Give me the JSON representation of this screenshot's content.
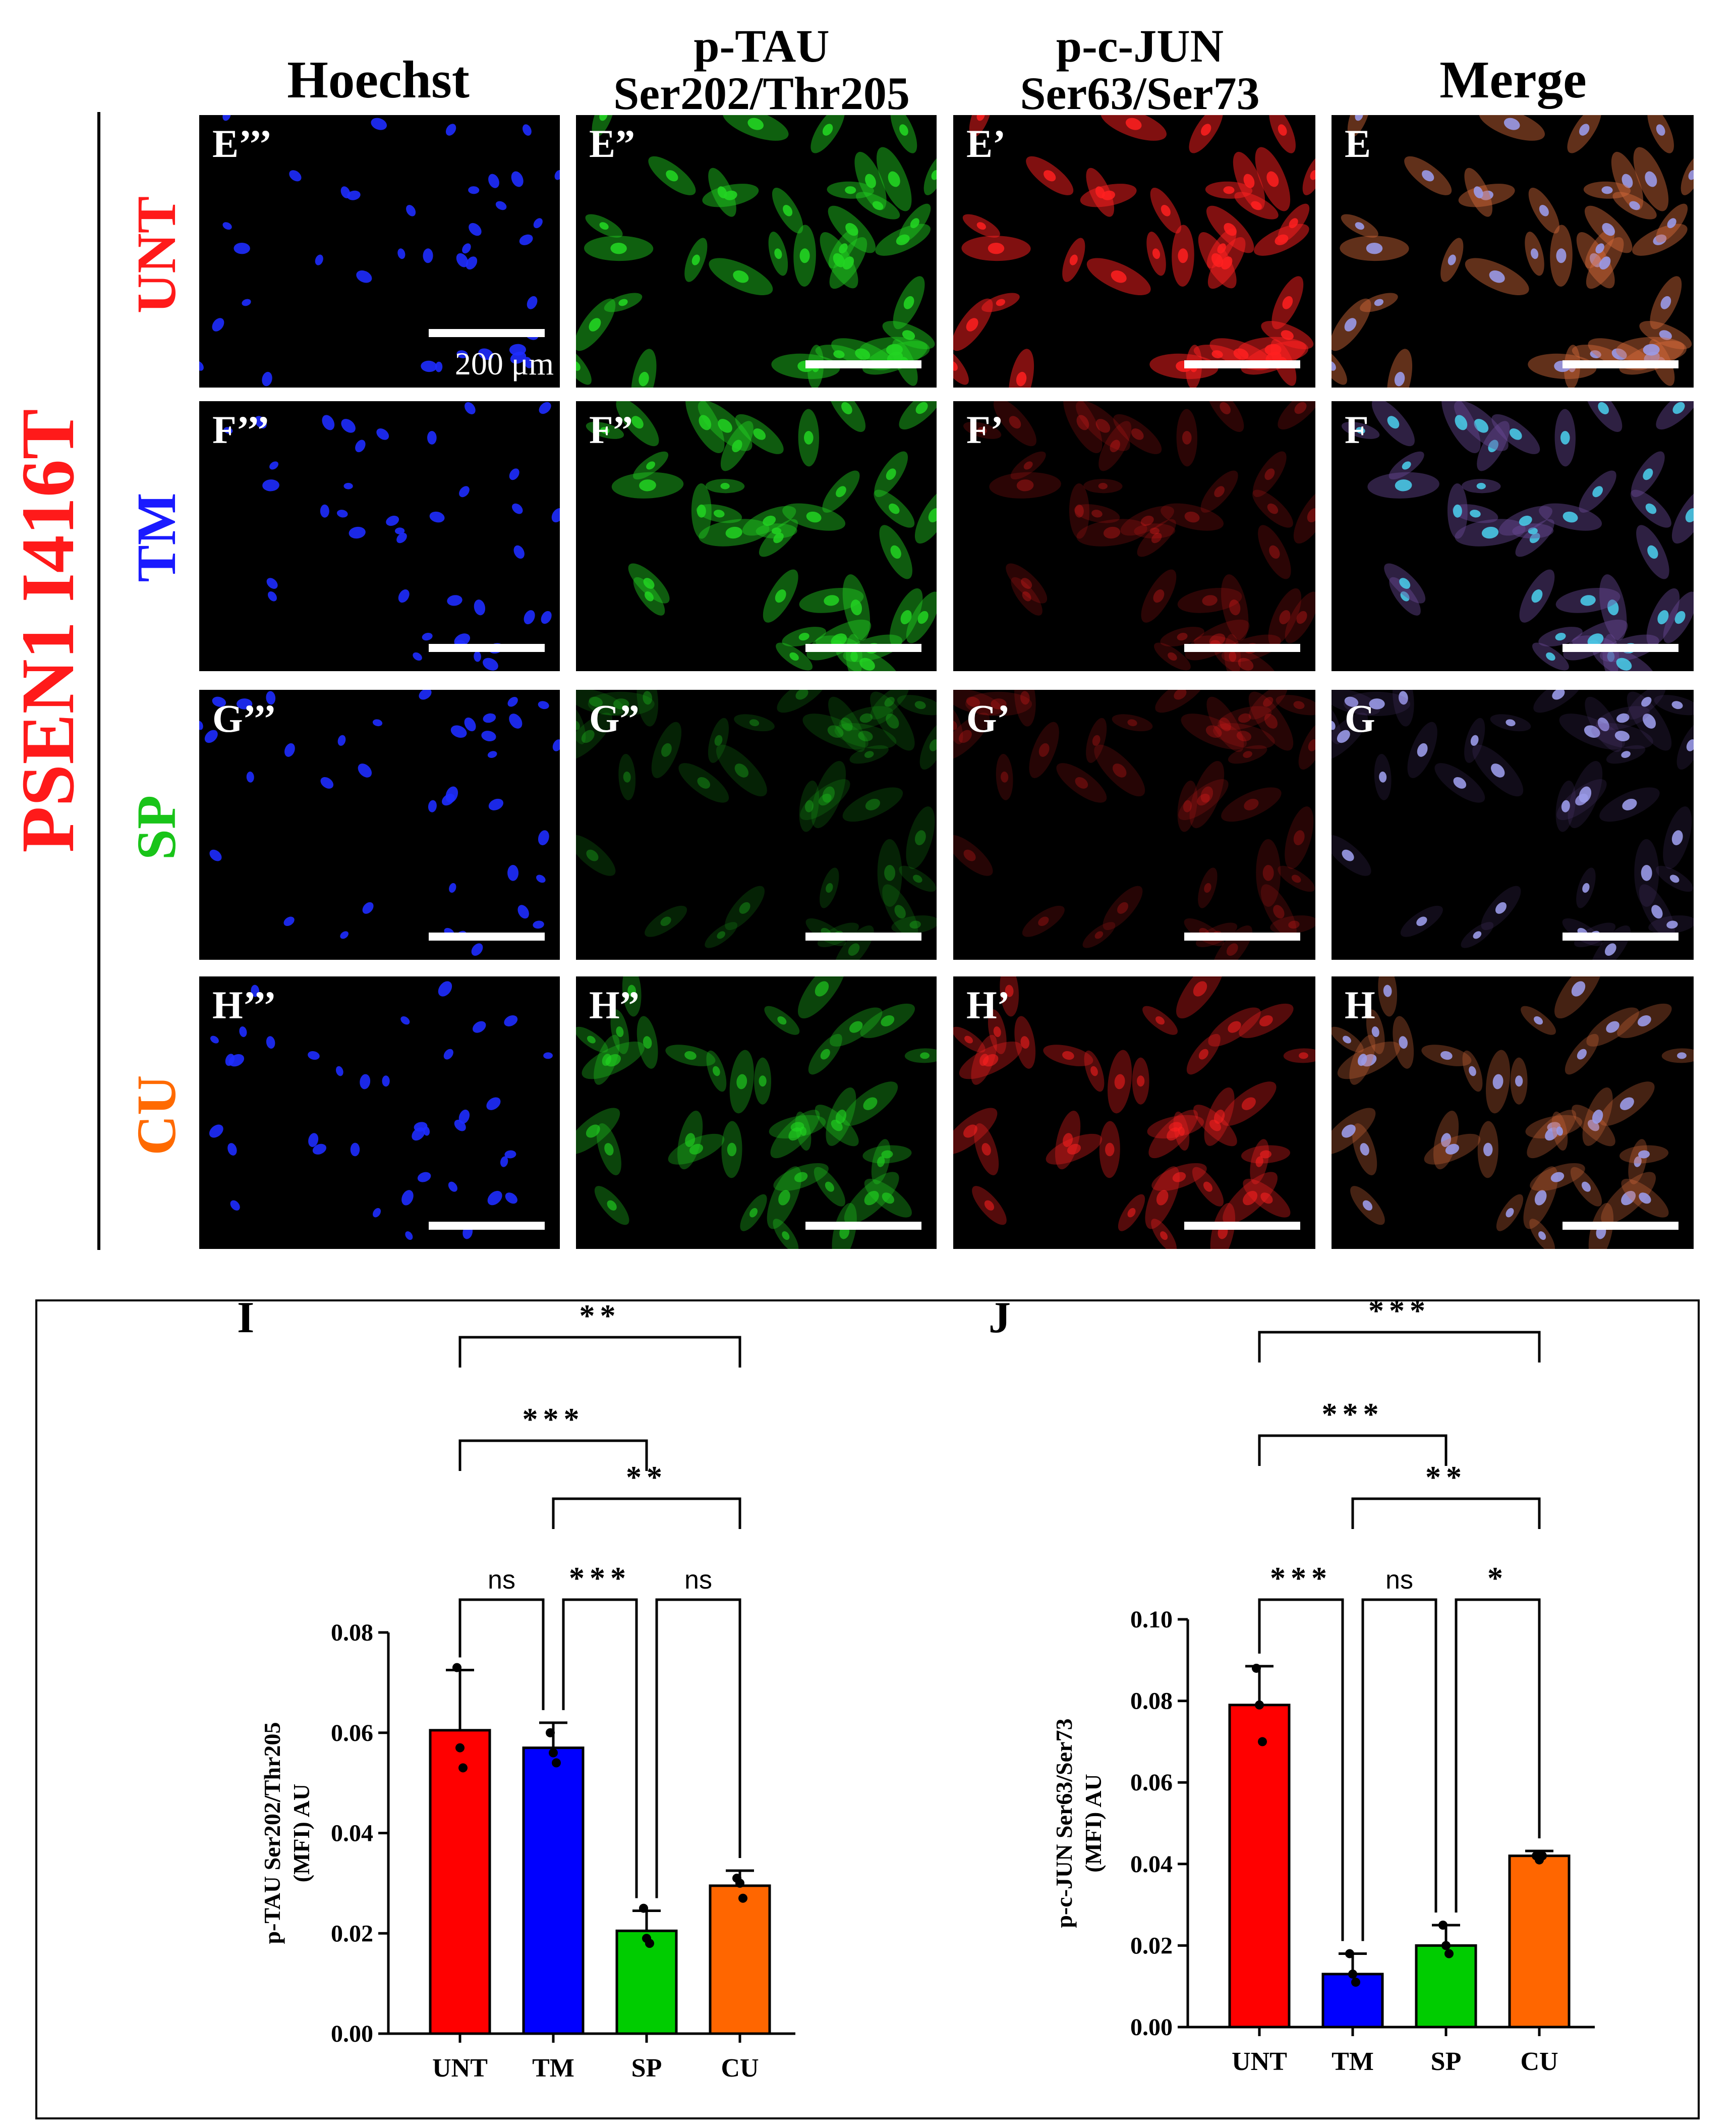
{
  "figure": {
    "column_headers": [
      {
        "line1": "Hoechst",
        "line2": ""
      },
      {
        "line1": "p-TAU",
        "line2": "Ser202/Thr205"
      },
      {
        "line1": "p-c-JUN",
        "line2": "Ser63/Ser73"
      },
      {
        "line1": "Merge",
        "line2": ""
      }
    ],
    "group_label": "PSEN1 I416T",
    "rows": [
      {
        "label": "UNT",
        "color": "#ff1a1a",
        "panels": [
          "E’’’",
          "E”",
          "E’",
          "E"
        ]
      },
      {
        "label": "TM",
        "color": "#1a1aff",
        "panels": [
          "F’’’",
          "F”",
          "F’",
          "F"
        ]
      },
      {
        "label": "SP",
        "color": "#19c419",
        "panels": [
          "G’’’",
          "G”",
          "G’",
          "G"
        ]
      },
      {
        "label": "CU",
        "color": "#ff6a00",
        "panels": [
          "H’’’",
          "H”",
          "H’",
          "H"
        ]
      }
    ],
    "scale_bar_label": "200 μm",
    "channel_colors": {
      "hoechst": "#1e2cff",
      "tau": "#22d422",
      "jun": "#ff2020"
    }
  },
  "chart_data": [
    {
      "panel_label": "I",
      "type": "bar",
      "categories": [
        "UNT",
        "TM",
        "SP",
        "CU"
      ],
      "values": [
        0.0605,
        0.057,
        0.0205,
        0.0295
      ],
      "errors": [
        0.012,
        0.005,
        0.004,
        0.003
      ],
      "points": [
        [
          0.073,
          0.057,
          0.053
        ],
        [
          0.06,
          0.056,
          0.054
        ],
        [
          0.025,
          0.019,
          0.018
        ],
        [
          0.031,
          0.03,
          0.027
        ]
      ],
      "colors": [
        "#ff0000",
        "#0000ff",
        "#00cc00",
        "#ff6600"
      ],
      "ylabel_line1": "p-TAU Ser202/Thr205",
      "ylabel_line2": "(MFI) AU",
      "ylim": [
        0,
        0.08
      ],
      "yticks": [
        "0.00",
        "0.02",
        "0.04",
        "0.06",
        "0.08"
      ],
      "significance": [
        {
          "from": "UNT",
          "to": "TM",
          "label": "ns"
        },
        {
          "from": "TM",
          "to": "SP",
          "label": "***"
        },
        {
          "from": "SP",
          "to": "CU",
          "label": "ns"
        },
        {
          "from": "UNT",
          "to": "SP",
          "label": "***"
        },
        {
          "from": "TM",
          "to": "CU",
          "label": "**"
        },
        {
          "from": "UNT",
          "to": "CU",
          "label": "**"
        }
      ]
    },
    {
      "panel_label": "J",
      "type": "bar",
      "categories": [
        "UNT",
        "TM",
        "SP",
        "CU"
      ],
      "values": [
        0.079,
        0.013,
        0.02,
        0.042
      ],
      "errors": [
        0.0095,
        0.005,
        0.005,
        0.0012
      ],
      "points": [
        [
          0.088,
          0.079,
          0.07
        ],
        [
          0.018,
          0.013,
          0.011
        ],
        [
          0.025,
          0.02,
          0.018
        ],
        [
          0.042,
          0.041,
          0.042
        ]
      ],
      "colors": [
        "#ff0000",
        "#0000ff",
        "#00cc00",
        "#ff6600"
      ],
      "ylabel_line1": "p-c-JUN Ser63/Ser73",
      "ylabel_line2": "(MFI) AU",
      "ylim": [
        0,
        0.1
      ],
      "yticks": [
        "0.00",
        "0.02",
        "0.04",
        "0.06",
        "0.08",
        "0.10"
      ],
      "significance": [
        {
          "from": "UNT",
          "to": "TM",
          "label": "***"
        },
        {
          "from": "TM",
          "to": "SP",
          "label": "ns"
        },
        {
          "from": "SP",
          "to": "CU",
          "label": "*"
        },
        {
          "from": "UNT",
          "to": "SP",
          "label": "***"
        },
        {
          "from": "TM",
          "to": "CU",
          "label": "**"
        },
        {
          "from": "UNT",
          "to": "CU",
          "label": "***"
        }
      ]
    }
  ]
}
